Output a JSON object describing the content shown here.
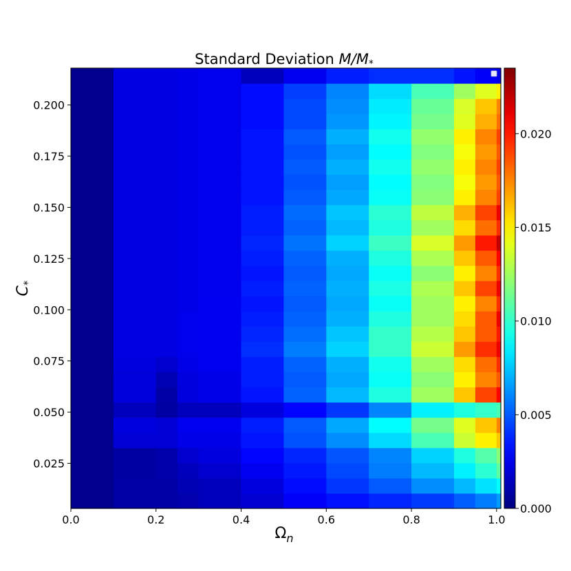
{
  "chart_data": {
    "type": "heatmap",
    "title": {
      "text": "Standard Deviation ",
      "math": "M/M",
      "sub": "*"
    },
    "xlabel": {
      "base": "Ω",
      "sub": "n"
    },
    "ylabel": {
      "base": "C",
      "sub": "*"
    },
    "xlim": [
      0.0,
      1.01
    ],
    "ylim": [
      0.003,
      0.218
    ],
    "x_ticks": [
      "0.0",
      "0.2",
      "0.4",
      "0.6",
      "0.8",
      "1.0"
    ],
    "x_tick_values": [
      0.0,
      0.2,
      0.4,
      0.6,
      0.8,
      1.0
    ],
    "y_ticks": [
      "0.025",
      "0.050",
      "0.075",
      "0.100",
      "0.125",
      "0.150",
      "0.175",
      "0.200"
    ],
    "y_tick_values": [
      0.025,
      0.05,
      0.075,
      0.1,
      0.125,
      0.15,
      0.175,
      0.2
    ],
    "colorbar": {
      "colormap": "jet",
      "range": [
        0.0,
        0.0235
      ],
      "ticks": [
        "0.000",
        "0.005",
        "0.010",
        "0.015",
        "0.020"
      ],
      "tick_values": [
        0.0,
        0.005,
        0.01,
        0.015,
        0.02
      ]
    },
    "grid": false,
    "legend": "top-right (empty)",
    "x_edges": [
      0.0,
      0.1,
      0.2,
      0.25,
      0.3,
      0.4,
      0.5,
      0.6,
      0.7,
      0.8,
      0.9,
      0.95,
      1.0,
      1.01
    ],
    "c_rows": [
      0.005,
      0.0125,
      0.02,
      0.0275,
      0.035,
      0.0425,
      0.05,
      0.0575,
      0.065,
      0.0725,
      0.08,
      0.0875,
      0.095,
      0.1025,
      0.11,
      0.1175,
      0.125,
      0.1325,
      0.14,
      0.1475,
      0.155,
      0.1625,
      0.17,
      0.1775,
      0.185,
      0.1925,
      0.2,
      0.2075,
      0.215
    ],
    "values": [
      [
        0.0003,
        0.0009,
        0.0009,
        0.0011,
        0.0014,
        0.0019,
        0.0028,
        0.0033,
        0.0038,
        0.0043,
        0.0051,
        0.0058,
        0.0065
      ],
      [
        0.0003,
        0.0009,
        0.0009,
        0.0012,
        0.0014,
        0.0022,
        0.0032,
        0.0042,
        0.005,
        0.0062,
        0.0072,
        0.0082,
        0.0088
      ],
      [
        0.0003,
        0.0008,
        0.001,
        0.0014,
        0.0018,
        0.0026,
        0.0035,
        0.0046,
        0.0058,
        0.0072,
        0.0085,
        0.0098,
        0.011
      ],
      [
        0.0003,
        0.0008,
        0.001,
        0.0018,
        0.0022,
        0.003,
        0.0038,
        0.0049,
        0.006,
        0.0078,
        0.0095,
        0.0108,
        0.012
      ],
      [
        0.0003,
        0.002,
        0.002,
        0.0024,
        0.0024,
        0.0034,
        0.0048,
        0.0062,
        0.008,
        0.0105,
        0.0135,
        0.015,
        0.016
      ],
      [
        0.0003,
        0.0022,
        0.002,
        0.0026,
        0.0026,
        0.0036,
        0.005,
        0.0068,
        0.0088,
        0.0115,
        0.014,
        0.016,
        0.0175
      ],
      [
        0.0003,
        0.0014,
        0.0008,
        0.0014,
        0.0014,
        0.0022,
        0.003,
        0.0042,
        0.006,
        0.0085,
        0.0095,
        0.01,
        0.0105
      ],
      [
        0.0003,
        0.0021,
        0.0009,
        0.0022,
        0.0024,
        0.0034,
        0.0052,
        0.0072,
        0.0095,
        0.0125,
        0.016,
        0.019,
        0.0205
      ],
      [
        0.0003,
        0.0021,
        0.0012,
        0.0022,
        0.0024,
        0.0036,
        0.005,
        0.0068,
        0.009,
        0.012,
        0.015,
        0.0175,
        0.0185
      ],
      [
        0.0003,
        0.0022,
        0.0018,
        0.0024,
        0.0026,
        0.0036,
        0.0052,
        0.007,
        0.0092,
        0.0125,
        0.0155,
        0.018,
        0.0195
      ],
      [
        0.0003,
        0.0023,
        0.0023,
        0.0025,
        0.0026,
        0.004,
        0.0058,
        0.0078,
        0.01,
        0.0135,
        0.017,
        0.0195,
        0.021
      ],
      [
        0.0003,
        0.0023,
        0.0023,
        0.0025,
        0.0026,
        0.0038,
        0.0055,
        0.0075,
        0.01,
        0.013,
        0.016,
        0.0185,
        0.02
      ],
      [
        0.0003,
        0.0023,
        0.0023,
        0.0025,
        0.0026,
        0.0036,
        0.0052,
        0.007,
        0.0095,
        0.0125,
        0.0155,
        0.0185,
        0.021
      ],
      [
        0.0003,
        0.0023,
        0.0023,
        0.0024,
        0.0026,
        0.0034,
        0.005,
        0.0068,
        0.009,
        0.0125,
        0.015,
        0.0175,
        0.0195
      ],
      [
        0.0003,
        0.0023,
        0.0023,
        0.0024,
        0.0025,
        0.0036,
        0.0052,
        0.007,
        0.0094,
        0.0128,
        0.016,
        0.019,
        0.021
      ],
      [
        0.0003,
        0.0023,
        0.0023,
        0.0024,
        0.0025,
        0.0034,
        0.005,
        0.0068,
        0.009,
        0.012,
        0.015,
        0.0175,
        0.0195
      ],
      [
        0.0003,
        0.0023,
        0.0023,
        0.0024,
        0.0025,
        0.0036,
        0.0052,
        0.007,
        0.0095,
        0.0128,
        0.016,
        0.0185,
        0.0205
      ],
      [
        0.0003,
        0.0023,
        0.0023,
        0.0024,
        0.0025,
        0.0038,
        0.0056,
        0.0078,
        0.0102,
        0.0138,
        0.017,
        0.02,
        0.022
      ],
      [
        0.0003,
        0.0023,
        0.0023,
        0.0024,
        0.0025,
        0.0036,
        0.0052,
        0.0072,
        0.0095,
        0.0125,
        0.0155,
        0.018,
        0.0195
      ],
      [
        0.0003,
        0.0023,
        0.0023,
        0.0024,
        0.0025,
        0.0036,
        0.0054,
        0.0075,
        0.0098,
        0.0132,
        0.0165,
        0.019,
        0.021
      ],
      [
        0.0003,
        0.0023,
        0.0023,
        0.0024,
        0.0025,
        0.0034,
        0.005,
        0.0068,
        0.009,
        0.012,
        0.015,
        0.0175,
        0.019
      ],
      [
        0.0003,
        0.0023,
        0.0023,
        0.0024,
        0.0025,
        0.0034,
        0.0048,
        0.0066,
        0.0088,
        0.0118,
        0.0145,
        0.017,
        0.0185
      ],
      [
        0.0003,
        0.0023,
        0.0023,
        0.0024,
        0.0025,
        0.0034,
        0.005,
        0.007,
        0.0092,
        0.0122,
        0.015,
        0.0175,
        0.019
      ],
      [
        0.0003,
        0.0023,
        0.0023,
        0.0024,
        0.0025,
        0.0034,
        0.0048,
        0.0066,
        0.0088,
        0.0118,
        0.0145,
        0.017,
        0.0185
      ],
      [
        0.0003,
        0.0023,
        0.0023,
        0.0024,
        0.0025,
        0.0034,
        0.005,
        0.007,
        0.0092,
        0.0122,
        0.015,
        0.0175,
        0.019
      ],
      [
        0.0003,
        0.0023,
        0.0023,
        0.0024,
        0.0025,
        0.0032,
        0.0046,
        0.0064,
        0.0086,
        0.0115,
        0.014,
        0.0165,
        0.018
      ],
      [
        0.0003,
        0.0023,
        0.0023,
        0.0024,
        0.0025,
        0.0032,
        0.0046,
        0.0062,
        0.0084,
        0.0112,
        0.0138,
        0.016,
        0.0175
      ],
      [
        0.0003,
        0.0023,
        0.0023,
        0.0024,
        0.0025,
        0.0032,
        0.0044,
        0.006,
        0.008,
        0.0105,
        0.0125,
        0.014,
        0.015
      ],
      [
        0.0003,
        0.0023,
        0.0023,
        0.0024,
        0.0025,
        0.0014,
        0.0026,
        0.0036,
        0.004,
        0.004,
        0.0034,
        0.0028,
        0.0024
      ]
    ]
  }
}
